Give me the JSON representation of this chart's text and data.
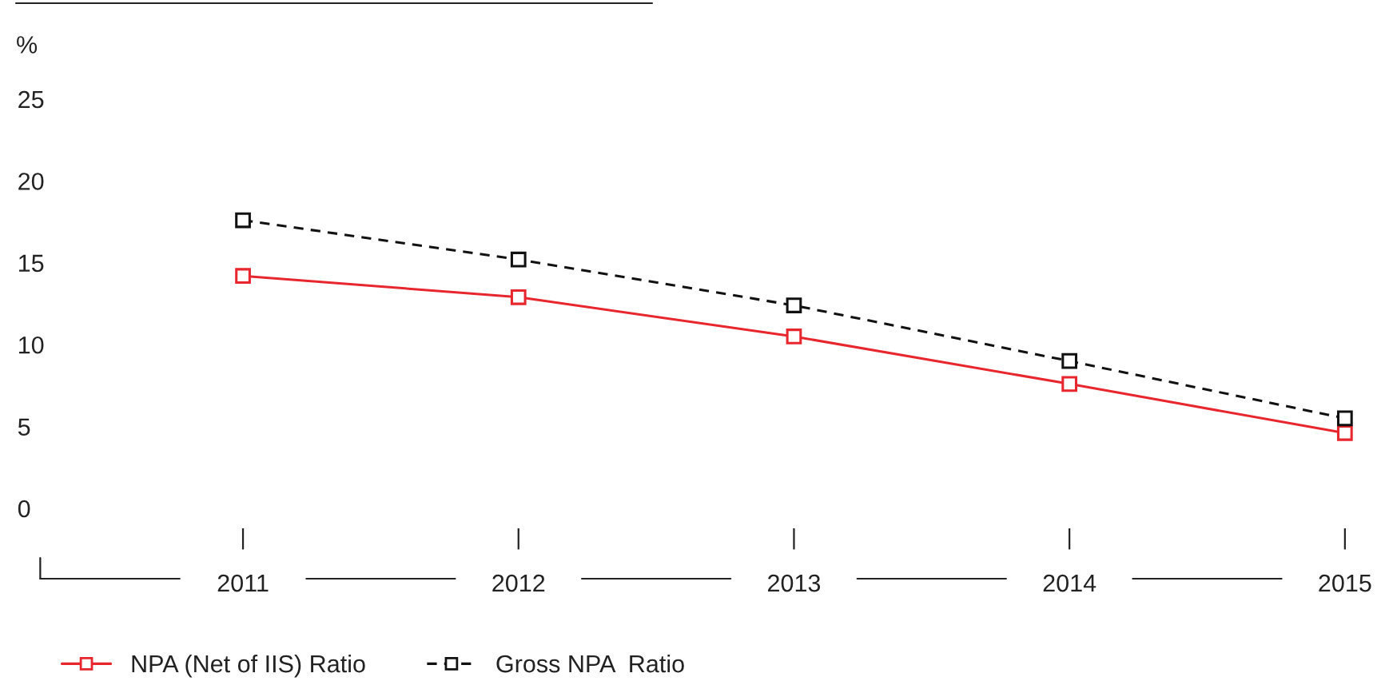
{
  "chart_data": {
    "type": "line",
    "ylabel": "%",
    "categories": [
      "2011",
      "2012",
      "2013",
      "2014",
      "2015"
    ],
    "series": [
      {
        "name": "NPA (Net of IIS) Ratio",
        "color": "#e8262e",
        "values": [
          14.2,
          12.9,
          10.5,
          7.6,
          4.6
        ],
        "line_style": "solid"
      },
      {
        "name": "Gross NPA  Ratio",
        "color": "#111111",
        "values": [
          17.6,
          15.2,
          12.4,
          9.0,
          5.5
        ],
        "line_style": "dashed"
      }
    ],
    "ylim": [
      0,
      25
    ],
    "yticks": [
      0,
      5,
      10,
      15,
      20,
      25
    ],
    "grid": false,
    "legend": "bottom left",
    "marker": "square"
  }
}
